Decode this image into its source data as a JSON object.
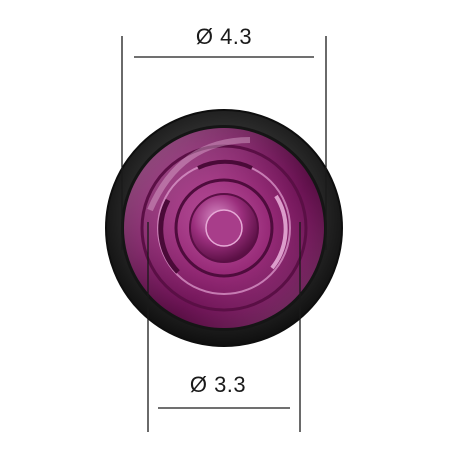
{
  "dimensions": {
    "outer": {
      "label": "Ø 4.3"
    },
    "inner": {
      "label": "Ø 3.3"
    }
  },
  "colors": {
    "background": "#ffffff",
    "body": "#2b2b2b",
    "bodyRim": "#111111",
    "lens": "#a0307e",
    "lensDark": "#5a0f45",
    "lensHighlight": "#e7a7d7",
    "dimensionLine": "#1a1a1a"
  }
}
